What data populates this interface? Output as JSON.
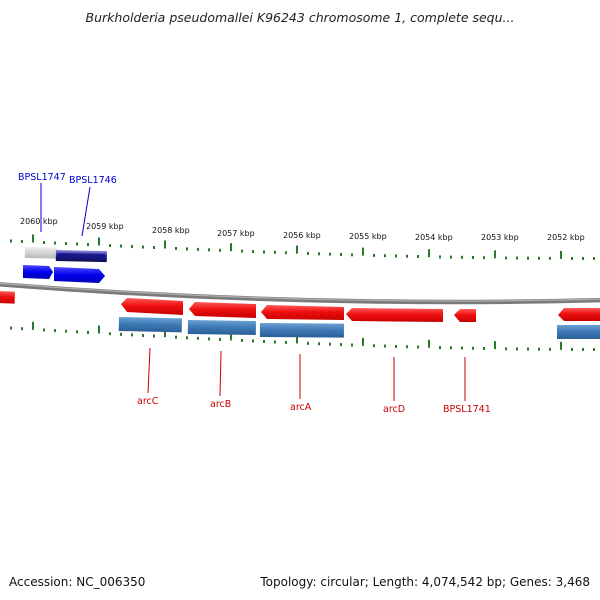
{
  "title": "Burkholderia pseudomallei K96243 chromosome 1, complete sequ...",
  "footer": {
    "accession": "Accession: NC_006350",
    "summary": "Topology: circular; Length: 4,074,542 bp; Genes: 3,468"
  },
  "colors": {
    "gene_forward": "#0000ee",
    "gene_reverse": "#ee1111",
    "cds_strip": "#3c78b4",
    "backbone": "#808080",
    "tick": "#2a7a2a",
    "label_forward": "#0000cc",
    "label_reverse": "#cc0000"
  },
  "scale_labels": [
    "2060 kbp",
    "2059 kbp",
    "2058 kbp",
    "2057 kbp",
    "2056 kbp",
    "2055 kbp",
    "2054 kbp",
    "2053 kbp",
    "2052 kbp"
  ],
  "genes": [
    {
      "name": "BPSL1747",
      "strand": "forward"
    },
    {
      "name": "BPSL1746",
      "strand": "forward"
    },
    {
      "name": "arcC",
      "strand": "reverse"
    },
    {
      "name": "arcB",
      "strand": "reverse"
    },
    {
      "name": "arcA",
      "strand": "reverse"
    },
    {
      "name": "arcD",
      "strand": "reverse"
    },
    {
      "name": "BPSL1741",
      "strand": "reverse"
    }
  ]
}
